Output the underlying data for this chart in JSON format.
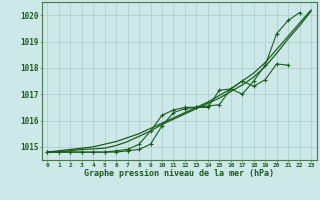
{
  "hours": [
    0,
    1,
    2,
    3,
    4,
    5,
    6,
    7,
    8,
    9,
    10,
    11,
    12,
    13,
    14,
    15,
    16,
    17,
    18,
    19,
    20,
    21,
    22,
    23
  ],
  "series_smooth1": [
    1014.8,
    1014.85,
    1014.9,
    1014.95,
    1015.0,
    1015.1,
    1015.2,
    1015.35,
    1015.5,
    1015.7,
    1015.9,
    1016.1,
    1016.3,
    1016.5,
    1016.7,
    1016.95,
    1017.2,
    1017.5,
    1017.8,
    1018.2,
    1018.7,
    1019.2,
    1019.7,
    1020.2
  ],
  "series_smooth2": [
    1014.8,
    1014.82,
    1014.85,
    1014.9,
    1014.92,
    1014.95,
    1015.05,
    1015.2,
    1015.4,
    1015.6,
    1015.85,
    1016.05,
    1016.25,
    1016.45,
    1016.65,
    1016.85,
    1017.1,
    1017.35,
    1017.65,
    1018.05,
    1018.55,
    1019.1,
    1019.6,
    1020.15
  ],
  "series_measure1": [
    1014.8,
    1014.8,
    1014.8,
    1014.8,
    1014.8,
    1014.8,
    1014.8,
    1014.85,
    1014.9,
    1015.1,
    1015.8,
    1016.3,
    1016.45,
    1016.5,
    1016.5,
    1017.15,
    1017.2,
    1017.0,
    1017.5,
    1018.1,
    1019.3,
    1019.8,
    1020.1,
    null
  ],
  "series_measure2": [
    1014.8,
    1014.8,
    1014.8,
    1014.8,
    1014.8,
    1014.8,
    1014.85,
    1014.9,
    1015.1,
    1015.6,
    1016.2,
    1016.4,
    1016.5,
    1016.5,
    1016.55,
    1016.6,
    1017.2,
    1017.5,
    1017.3,
    1017.55,
    1018.15,
    1018.1,
    null,
    null
  ],
  "ylim": [
    1014.5,
    1020.5
  ],
  "yticks": [
    1015,
    1016,
    1017,
    1018,
    1019,
    1020
  ],
  "xlim": [
    -0.5,
    23.5
  ],
  "line_color": "#1a5c1a",
  "bg_color": "#cce8e8",
  "grid_color": "#aacccc",
  "xlabel": "Graphe pression niveau de la mer (hPa)",
  "figsize": [
    3.2,
    2.0
  ],
  "dpi": 100
}
